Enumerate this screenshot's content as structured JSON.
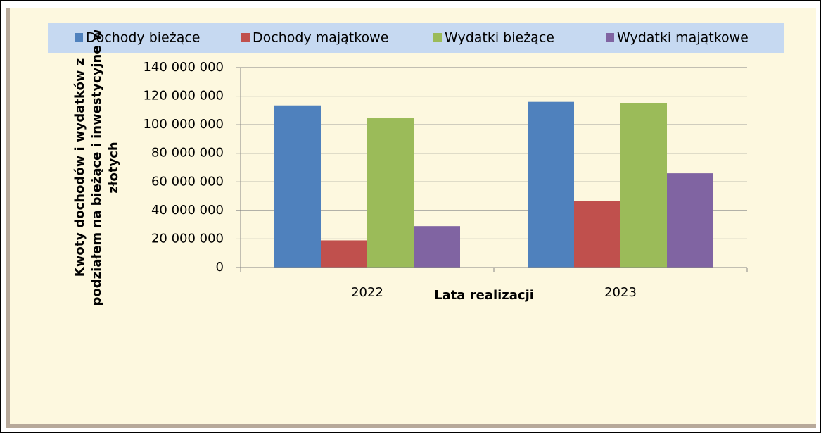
{
  "chart_data": {
    "type": "bar",
    "x_label": "Lata realizacji",
    "y_label": [
      "Kwoty  dochodów i wydatków z",
      "podziałem na bieżące i inwestycyjne w",
      "złotych"
    ],
    "categories": [
      "2022",
      "2023"
    ],
    "series": [
      {
        "name": "Dochody bieżące",
        "color": "#4f81bd",
        "values": [
          113500000,
          116000000
        ]
      },
      {
        "name": "Dochody majątkowe",
        "color": "#c0504d",
        "values": [
          19000000,
          46500000
        ]
      },
      {
        "name": "Wydatki bieżące",
        "color": "#9bbb59",
        "values": [
          104500000,
          115000000
        ]
      },
      {
        "name": "Wydatki majątkowe",
        "color": "#8064a2",
        "values": [
          29000000,
          66000000
        ]
      }
    ],
    "ylim": [
      0,
      140000000
    ],
    "yticks": [
      {
        "value": 0,
        "label": "0"
      },
      {
        "value": 20000000,
        "label": "20 000 000"
      },
      {
        "value": 40000000,
        "label": "40 000 000"
      },
      {
        "value": 60000000,
        "label": "60 000 000"
      },
      {
        "value": 80000000,
        "label": "80 000 000"
      },
      {
        "value": 100000000,
        "label": "100 000 000"
      },
      {
        "value": 120000000,
        "label": "120 000 000"
      },
      {
        "value": 140000000,
        "label": "140 000 000"
      }
    ],
    "grid": true,
    "legend": "top"
  }
}
